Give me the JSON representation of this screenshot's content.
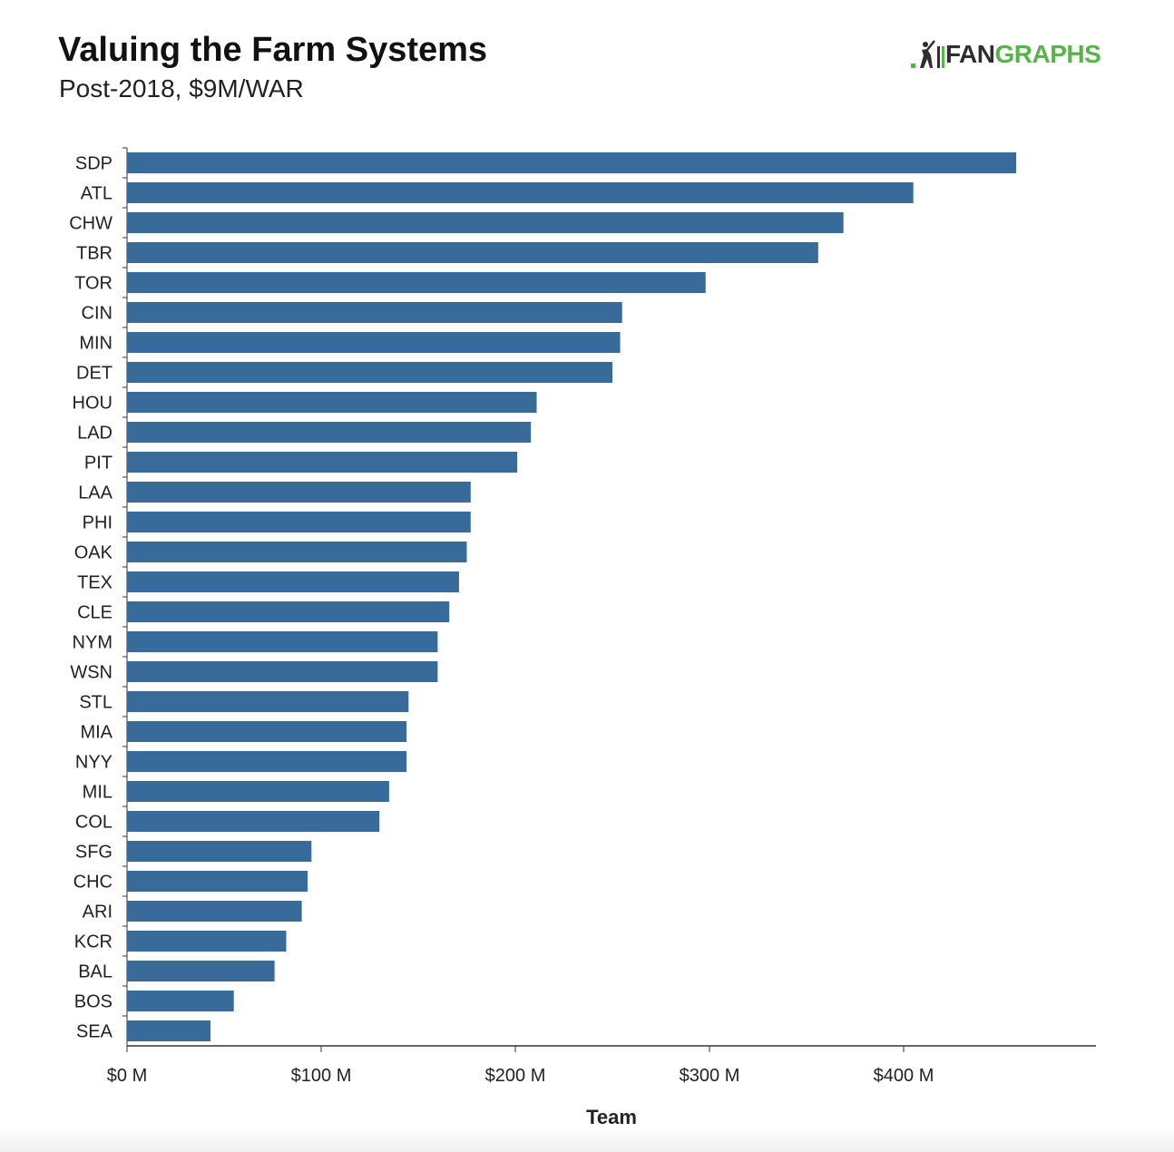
{
  "header": {
    "title": "Valuing the Farm Systems",
    "subtitle": "Post-2018, $9M/WAR"
  },
  "logo": {
    "icon": "fangraphs-batter-icon",
    "text_part1": "FAN",
    "text_part2": "GRAPHS",
    "color_dark": "#2e2e2e",
    "color_green": "#56b448"
  },
  "chart_data": {
    "type": "bar",
    "orientation": "horizontal",
    "categories": [
      "SDP",
      "ATL",
      "CHW",
      "TBR",
      "TOR",
      "CIN",
      "MIN",
      "DET",
      "HOU",
      "LAD",
      "PIT",
      "LAA",
      "PHI",
      "OAK",
      "TEX",
      "CLE",
      "NYM",
      "WSN",
      "STL",
      "MIA",
      "NYY",
      "MIL",
      "COL",
      "SFG",
      "CHC",
      "ARI",
      "KCR",
      "BAL",
      "BOS",
      "SEA"
    ],
    "values": [
      458,
      405,
      369,
      356,
      298,
      255,
      254,
      250,
      211,
      208,
      201,
      177,
      177,
      175,
      171,
      166,
      160,
      160,
      145,
      144,
      144,
      135,
      130,
      95,
      93,
      90,
      82,
      76,
      55,
      43
    ],
    "xlim": [
      0,
      500
    ],
    "xticks": [
      0,
      100,
      200,
      300,
      400
    ],
    "tick_labels": [
      "$0 M",
      "$100 M",
      "$200 M",
      "$300 M",
      "$400 M"
    ],
    "xlabel": "Team",
    "bar_color": "#386a9a",
    "grid": false
  }
}
